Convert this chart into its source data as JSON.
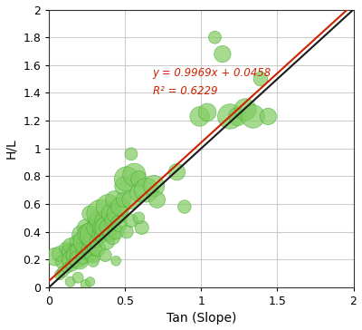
{
  "title": "",
  "xlabel": "Tan (Slope)",
  "ylabel": "H/L",
  "xlim": [
    0,
    2
  ],
  "ylim": [
    0,
    2
  ],
  "xticks": [
    0,
    0.5,
    1,
    1.5,
    2
  ],
  "yticks": [
    0,
    0.2,
    0.4,
    0.6,
    0.8,
    1.0,
    1.2,
    1.4,
    1.6,
    1.8,
    2
  ],
  "regression_slope": 0.9969,
  "regression_intercept": 0.0458,
  "r_squared": 0.6229,
  "equation_text": "y = 0.9969x + 0.0458",
  "r2_text": "R² = 0.6229",
  "equation_x": 0.68,
  "equation_y": 1.5,
  "line_color_black": "#1a1a1a",
  "line_color_red": "#cc2200",
  "scatter_color_face": "#80cc60",
  "scatter_color_edge": "#44aa33",
  "background_color": "#ffffff",
  "grid_color": "#cccccc",
  "points": [
    [
      0.04,
      0.22,
      200
    ],
    [
      0.07,
      0.24,
      150
    ],
    [
      0.09,
      0.18,
      120
    ],
    [
      0.11,
      0.28,
      100
    ],
    [
      0.12,
      0.14,
      80
    ],
    [
      0.13,
      0.26,
      130
    ],
    [
      0.14,
      0.2,
      180
    ],
    [
      0.14,
      0.3,
      140
    ],
    [
      0.15,
      0.16,
      100
    ],
    [
      0.16,
      0.23,
      120
    ],
    [
      0.17,
      0.28,
      90
    ],
    [
      0.17,
      0.19,
      80
    ],
    [
      0.18,
      0.33,
      110
    ],
    [
      0.19,
      0.23,
      350
    ],
    [
      0.19,
      0.26,
      160
    ],
    [
      0.2,
      0.2,
      240
    ],
    [
      0.21,
      0.33,
      130
    ],
    [
      0.21,
      0.38,
      200
    ],
    [
      0.22,
      0.28,
      100
    ],
    [
      0.22,
      0.21,
      90
    ],
    [
      0.23,
      0.26,
      150
    ],
    [
      0.24,
      0.33,
      380
    ],
    [
      0.24,
      0.43,
      170
    ],
    [
      0.25,
      0.26,
      110
    ],
    [
      0.26,
      0.28,
      130
    ],
    [
      0.26,
      0.38,
      300
    ],
    [
      0.27,
      0.23,
      100
    ],
    [
      0.27,
      0.53,
      160
    ],
    [
      0.28,
      0.33,
      190
    ],
    [
      0.29,
      0.38,
      440
    ],
    [
      0.29,
      0.23,
      150
    ],
    [
      0.29,
      0.19,
      90
    ],
    [
      0.3,
      0.28,
      130
    ],
    [
      0.31,
      0.43,
      230
    ],
    [
      0.31,
      0.33,
      110
    ],
    [
      0.32,
      0.48,
      200
    ],
    [
      0.32,
      0.28,
      160
    ],
    [
      0.33,
      0.38,
      130
    ],
    [
      0.34,
      0.53,
      500
    ],
    [
      0.34,
      0.43,
      170
    ],
    [
      0.35,
      0.38,
      150
    ],
    [
      0.36,
      0.48,
      200
    ],
    [
      0.37,
      0.43,
      280
    ],
    [
      0.37,
      0.23,
      100
    ],
    [
      0.38,
      0.33,
      160
    ],
    [
      0.39,
      0.58,
      380
    ],
    [
      0.39,
      0.43,
      200
    ],
    [
      0.4,
      0.38,
      110
    ],
    [
      0.41,
      0.53,
      240
    ],
    [
      0.42,
      0.48,
      170
    ],
    [
      0.42,
      0.36,
      130
    ],
    [
      0.43,
      0.63,
      200
    ],
    [
      0.44,
      0.4,
      150
    ],
    [
      0.44,
      0.19,
      60
    ],
    [
      0.45,
      0.53,
      280
    ],
    [
      0.46,
      0.46,
      170
    ],
    [
      0.47,
      0.58,
      230
    ],
    [
      0.49,
      0.73,
      200
    ],
    [
      0.49,
      0.63,
      140
    ],
    [
      0.51,
      0.78,
      380
    ],
    [
      0.51,
      0.4,
      110
    ],
    [
      0.54,
      0.63,
      210
    ],
    [
      0.54,
      0.96,
      100
    ],
    [
      0.56,
      0.81,
      330
    ],
    [
      0.59,
      0.68,
      200
    ],
    [
      0.59,
      0.78,
      160
    ],
    [
      0.61,
      0.43,
      120
    ],
    [
      0.64,
      0.7,
      370
    ],
    [
      0.69,
      0.73,
      280
    ],
    [
      0.71,
      0.63,
      170
    ],
    [
      0.24,
      0.02,
      60
    ],
    [
      0.27,
      0.04,
      55
    ],
    [
      0.14,
      0.04,
      65
    ],
    [
      0.09,
      0.11,
      80
    ],
    [
      0.07,
      0.09,
      65
    ],
    [
      0.19,
      0.07,
      75
    ],
    [
      0.99,
      1.23,
      240
    ],
    [
      1.04,
      1.26,
      200
    ],
    [
      1.09,
      1.8,
      100
    ],
    [
      1.14,
      1.68,
      175
    ],
    [
      1.19,
      1.23,
      390
    ],
    [
      1.24,
      1.23,
      210
    ],
    [
      1.29,
      1.28,
      300
    ],
    [
      1.34,
      1.23,
      340
    ],
    [
      1.39,
      1.5,
      125
    ],
    [
      1.44,
      1.23,
      175
    ],
    [
      0.89,
      0.58,
      110
    ],
    [
      0.54,
      0.48,
      110
    ],
    [
      0.59,
      0.5,
      85
    ],
    [
      0.84,
      0.83,
      175
    ]
  ]
}
